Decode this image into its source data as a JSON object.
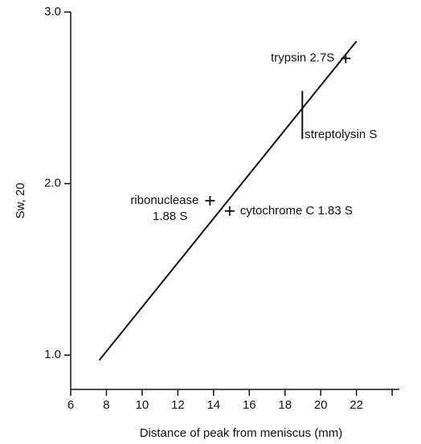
{
  "chart_data": {
    "type": "scatter",
    "x_label": "Distance of peak from meniscus (mm)",
    "y_label": "Sw, 20",
    "xlim": [
      6,
      24.4
    ],
    "ylim": [
      0.8,
      3.0
    ],
    "xticks": [
      6,
      8,
      10,
      12,
      14,
      16,
      18,
      20,
      22,
      {
        "value": 24,
        "label": null
      }
    ],
    "yticks": [
      {
        "value": 1.0,
        "label": "1.0"
      },
      {
        "value": 2.0,
        "label": "2.0"
      },
      {
        "value": 3.0,
        "label": "3.0"
      }
    ],
    "color": "#111111",
    "fit_line": {
      "x": [
        7.6,
        22
      ],
      "y": [
        0.97,
        2.83
      ]
    },
    "points": [
      {
        "label": [
          "trypsin 2.7S"
        ],
        "x": 21.4,
        "y": 2.73,
        "side": "left"
      },
      {
        "label": [
          "ribonuclease",
          "1.88 S"
        ],
        "x": 13.8,
        "y": 1.9,
        "side": "left"
      },
      {
        "label": [
          "cytochrome C 1.83 S"
        ],
        "x": 14.9,
        "y": 1.84,
        "side": "right"
      }
    ],
    "ranges": [
      {
        "label": "streptolysin S",
        "x": 18.97,
        "y_low": 2.26,
        "y_high": 2.54
      }
    ]
  }
}
